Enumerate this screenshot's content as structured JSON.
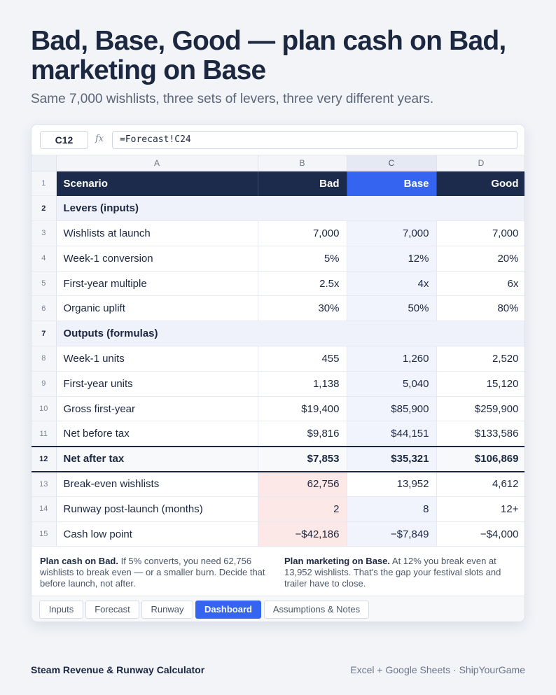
{
  "headline": "Bad, Base, Good — plan cash on Bad, marketing on Base",
  "subhead": "Same 7,000 wishlists, three sets of levers, three very different years.",
  "formula_bar": {
    "cell_ref": "C12",
    "fx": "fx",
    "formula": "=Forecast!C24"
  },
  "columns": [
    "A",
    "B",
    "C",
    "D"
  ],
  "rows": [
    {
      "n": "1",
      "label": "Scenario",
      "b": "Bad",
      "c": "Base",
      "d": "Good"
    },
    {
      "n": "2",
      "label": "Levers (inputs)"
    },
    {
      "n": "3",
      "label": "Wishlists at launch",
      "b": "7,000",
      "c": "7,000",
      "d": "7,000"
    },
    {
      "n": "4",
      "label": "Week-1 conversion",
      "b": "5%",
      "c": "12%",
      "d": "20%"
    },
    {
      "n": "5",
      "label": "First-year multiple",
      "b": "2.5x",
      "c": "4x",
      "d": "6x"
    },
    {
      "n": "6",
      "label": "Organic uplift",
      "b": "30%",
      "c": "50%",
      "d": "80%"
    },
    {
      "n": "7",
      "label": "Outputs (formulas)"
    },
    {
      "n": "8",
      "label": "Week-1 units",
      "b": "455",
      "c": "1,260",
      "d": "2,520"
    },
    {
      "n": "9",
      "label": "First-year units",
      "b": "1,138",
      "c": "5,040",
      "d": "15,120"
    },
    {
      "n": "10",
      "label": "Gross first-year",
      "b": "$19,400",
      "c": "$85,900",
      "d": "$259,900"
    },
    {
      "n": "11",
      "label": "Net before tax",
      "b": "$9,816",
      "c": "$44,151",
      "d": "$133,586"
    },
    {
      "n": "12",
      "label": "Net after tax",
      "b": "$7,853",
      "c": "$35,321",
      "d": "$106,869"
    },
    {
      "n": "13",
      "label": "Break-even wishlists",
      "b": "62,756",
      "c": "13,952",
      "d": "4,612"
    },
    {
      "n": "14",
      "label": "Runway post-launch (months)",
      "b": "2",
      "c": "8",
      "d": "12+"
    },
    {
      "n": "15",
      "label": "Cash low point",
      "b": "−$42,186",
      "c": "−$7,849",
      "d": "−$4,000"
    }
  ],
  "notes": {
    "left_title": "Plan cash on Bad.",
    "left_body": " If 5% converts, you need 62,756 wishlists to break even — or a smaller burn. Decide that before launch, not after.",
    "right_title": "Plan marketing on Base.",
    "right_body": " At 12% you break even at 13,952 wishlists. That's the gap your festival slots and trailer have to close."
  },
  "tabs": [
    "Inputs",
    "Forecast",
    "Runway",
    "Dashboard",
    "Assumptions & Notes"
  ],
  "active_tab": "Dashboard",
  "footer": {
    "left": "Steam Revenue & Runway Calculator",
    "right": "Excel + Google Sheets · ShipYourGame"
  },
  "colors": {
    "header_navy": "#1c2b4b",
    "accent_blue": "#3565f0",
    "input_blue": "#2f5fb8",
    "negative_red": "#c23b3b",
    "bad_highlight": "#fde8e8"
  }
}
